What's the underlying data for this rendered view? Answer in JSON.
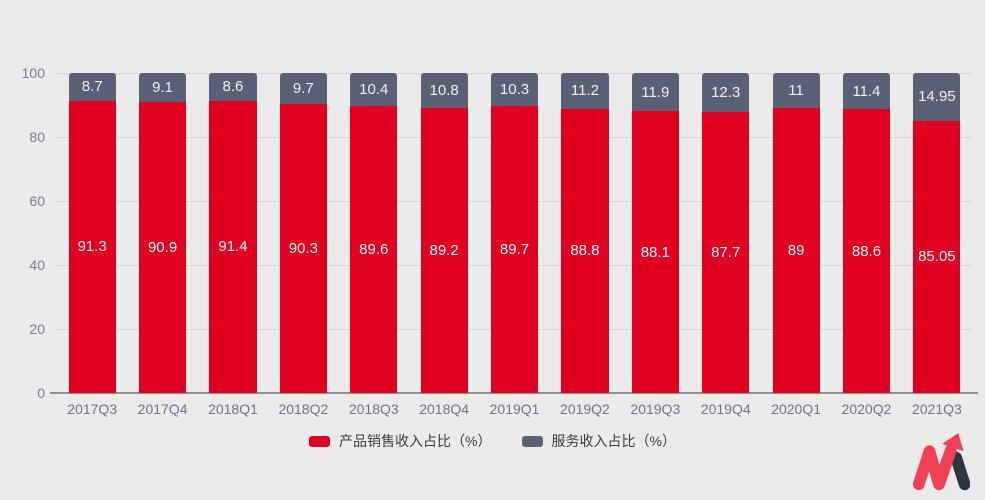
{
  "colors": {
    "background": "#ebebeb",
    "grid": "#d6d6d8",
    "axis_line": "#919191",
    "axis_label": "#787e95",
    "legend_text": "#3d3d3d"
  },
  "chart_data": {
    "type": "bar",
    "stacked": true,
    "title": "",
    "xlabel": "",
    "ylabel": "",
    "ylim": [
      0,
      100
    ],
    "yticks": [
      0,
      20,
      40,
      60,
      80,
      100
    ],
    "grid": true,
    "legend_position": "bottom",
    "categories": [
      "2017Q3",
      "2017Q4",
      "2018Q1",
      "2018Q2",
      "2018Q3",
      "2018Q4",
      "2019Q1",
      "2019Q2",
      "2019Q3",
      "2019Q4",
      "2020Q1",
      "2020Q2",
      "2021Q3"
    ],
    "series": [
      {
        "name": "产品销售收入占比（%）",
        "color": "#e00020",
        "label_color": "#ffffff",
        "values": [
          91.3,
          90.9,
          91.4,
          90.3,
          89.6,
          89.2,
          89.7,
          88.8,
          88.1,
          87.7,
          89,
          88.6,
          85.05
        ]
      },
      {
        "name": "服务收入占比（%）",
        "color": "#5a6075",
        "label_color": "#f0f0f0",
        "values": [
          8.7,
          9.1,
          8.6,
          9.7,
          10.4,
          10.8,
          10.3,
          11.2,
          11.9,
          12.3,
          11,
          11.4,
          14.95
        ]
      }
    ]
  },
  "logo": {
    "name": "m-arrow-logo",
    "red": "#ef4155",
    "dark": "#2e3440"
  }
}
